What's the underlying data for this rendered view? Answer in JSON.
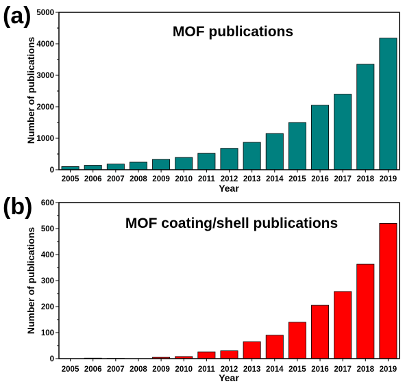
{
  "chart_data": [
    {
      "type": "bar",
      "panel_label": "(a)",
      "title": "MOF publications",
      "xlabel": "Year",
      "ylabel": "Number of publications",
      "categories": [
        "2005",
        "2006",
        "2007",
        "2008",
        "2009",
        "2010",
        "2011",
        "2012",
        "2013",
        "2014",
        "2015",
        "2016",
        "2017",
        "2018",
        "2019"
      ],
      "values": [
        100,
        140,
        180,
        240,
        330,
        390,
        520,
        680,
        870,
        1150,
        1500,
        2050,
        2400,
        3350,
        4180
      ],
      "ylim": [
        0,
        5000
      ],
      "yticks": [
        "0",
        "1000",
        "2000",
        "3000",
        "4000",
        "5000"
      ],
      "bar_color": "#00807F",
      "grid": false
    },
    {
      "type": "bar",
      "panel_label": "(b)",
      "title": "MOF coating/shell publications",
      "xlabel": "Year",
      "ylabel": "Number of publications",
      "categories": [
        "2005",
        "2006",
        "2007",
        "2008",
        "2009",
        "2010",
        "2011",
        "2012",
        "2013",
        "2014",
        "2015",
        "2016",
        "2017",
        "2018",
        "2019"
      ],
      "values": [
        0,
        2,
        1,
        0,
        5,
        8,
        26,
        30,
        65,
        90,
        140,
        205,
        258,
        363,
        520
      ],
      "ylim": [
        0,
        600
      ],
      "yticks": [
        "0",
        "100",
        "200",
        "300",
        "400",
        "500",
        "600"
      ],
      "bar_color": "#FF0000",
      "grid": false
    }
  ]
}
